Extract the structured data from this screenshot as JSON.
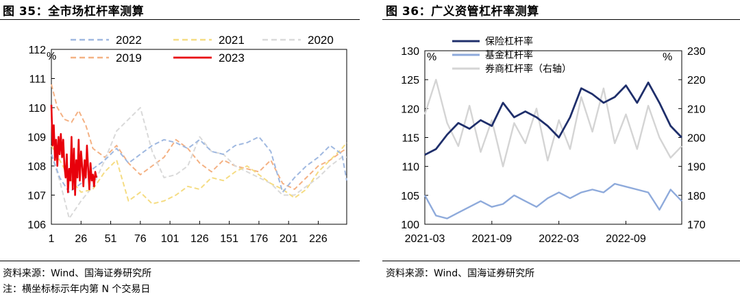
{
  "left": {
    "title": "图 35：全市场杠杆率测算",
    "source": "资料来源：Wind、国海证券研究所",
    "note": "注：横坐标标示年内第 N 个交易日",
    "chart_data": {
      "type": "line",
      "unit": "%",
      "xlim": [
        1,
        250
      ],
      "ylim": [
        106,
        112
      ],
      "x_ticks": [
        "1",
        "26",
        "51",
        "76",
        "101",
        "126",
        "151",
        "176",
        "201",
        "226"
      ],
      "y_ticks": [
        "106",
        "107",
        "108",
        "109",
        "110",
        "111",
        "112"
      ],
      "legend_position": "top",
      "series": [
        {
          "name": "2022",
          "color": "#9fb8e0",
          "dash": "dashed",
          "x": [
            1,
            8,
            16,
            26,
            36,
            46,
            56,
            66,
            76,
            86,
            96,
            106,
            116,
            126,
            136,
            146,
            156,
            166,
            176,
            186,
            196,
            206,
            216,
            226,
            236,
            246,
            250
          ],
          "y": [
            108.4,
            107.6,
            107.1,
            107.4,
            107.9,
            108.2,
            108.6,
            108.1,
            108.4,
            108.7,
            108.9,
            108.8,
            108.6,
            108.9,
            108.5,
            108.4,
            108.7,
            108.8,
            109.0,
            108.5,
            107.1,
            107.6,
            108.0,
            108.3,
            108.7,
            108.4,
            107.5
          ]
        },
        {
          "name": "2021",
          "color": "#f5dc82",
          "dash": "dashed",
          "x": [
            1,
            8,
            16,
            26,
            36,
            46,
            56,
            66,
            76,
            86,
            96,
            106,
            116,
            126,
            136,
            146,
            156,
            166,
            176,
            186,
            196,
            206,
            216,
            226,
            236,
            246,
            250
          ],
          "y": [
            108.7,
            108.2,
            107.6,
            107.1,
            107.2,
            107.8,
            108.2,
            106.8,
            107.1,
            106.7,
            106.8,
            107.0,
            107.3,
            107.2,
            107.6,
            107.5,
            107.8,
            108.0,
            107.7,
            107.4,
            107.2,
            106.9,
            107.2,
            107.8,
            108.2,
            108.6,
            108.8
          ]
        },
        {
          "name": "2020",
          "color": "#d9d9d9",
          "dash": "dashed",
          "x": [
            1,
            8,
            16,
            26,
            36,
            46,
            56,
            66,
            76,
            86,
            96,
            106,
            116,
            126,
            136,
            146,
            156,
            166,
            176,
            186,
            196,
            206,
            216,
            226,
            236,
            246,
            250
          ],
          "y": [
            108.4,
            107.5,
            106.2,
            106.8,
            107.3,
            108.2,
            109.2,
            109.6,
            110.0,
            108.5,
            107.6,
            107.7,
            108.0,
            109.0,
            108.5,
            108.4,
            108.0,
            107.8,
            107.6,
            107.4,
            107.0,
            107.0,
            107.3,
            107.6,
            108.0,
            108.3,
            108.3
          ]
        },
        {
          "name": "2019",
          "color": "#f4b183",
          "dash": "dashed",
          "x": [
            1,
            6,
            12,
            18,
            24,
            30,
            36,
            46,
            56,
            66,
            76,
            86,
            96,
            106,
            116,
            126,
            136,
            146,
            156,
            166,
            176,
            186,
            196,
            206,
            216,
            226,
            236,
            246,
            250
          ],
          "y": [
            110.8,
            110.0,
            109.6,
            109.5,
            109.9,
            109.4,
            108.6,
            108.3,
            108.7,
            108.1,
            107.7,
            108.0,
            108.3,
            108.9,
            108.6,
            108.1,
            107.8,
            108.2,
            108.0,
            107.9,
            107.8,
            108.2,
            107.4,
            107.2,
            107.6,
            108.0,
            108.2,
            108.5,
            108.6
          ]
        },
        {
          "name": "2023",
          "color": "#e8000b",
          "dash": "solid",
          "x": [
            1,
            2,
            3,
            4,
            5,
            6,
            7,
            8,
            9,
            10,
            11,
            12,
            13,
            14,
            15,
            16,
            17,
            18,
            19,
            20,
            21,
            22,
            23,
            24,
            25,
            26,
            27,
            28,
            29,
            30,
            31,
            32,
            33,
            34,
            35,
            36,
            37,
            38,
            39
          ],
          "y": [
            110.1,
            108.7,
            109.4,
            108.2,
            108.9,
            108.0,
            109.0,
            108.4,
            109.1,
            108.3,
            108.9,
            108.0,
            107.6,
            108.4,
            107.1,
            107.9,
            107.5,
            109.0,
            107.2,
            108.6,
            107.0,
            108.2,
            107.6,
            108.9,
            107.5,
            108.5,
            108.0,
            107.3,
            108.2,
            107.6,
            108.7,
            107.9,
            107.2,
            108.1,
            107.5,
            107.7,
            107.3,
            107.8,
            107.6
          ]
        }
      ]
    }
  },
  "right": {
    "title": "图 36：广义资管杠杆率测算",
    "source": "资料来源：Wind、国海证券研究所",
    "chart_data": {
      "type": "line",
      "unit_left": "%",
      "unit_right": "%",
      "ylim_left": [
        100,
        130
      ],
      "ylim_right": [
        170,
        230
      ],
      "x_range": [
        "2021-03",
        "2023-02"
      ],
      "x_ticks": [
        "2021-03",
        "2021-09",
        "2022-03",
        "2022-09"
      ],
      "y_ticks_left": [
        "100",
        "105",
        "110",
        "115",
        "120",
        "125",
        "130"
      ],
      "y_ticks_right": [
        "170",
        "180",
        "190",
        "200",
        "210",
        "220",
        "230"
      ],
      "legend_position": "top-left",
      "series": [
        {
          "name": "保险杠杆率",
          "axis": "left",
          "color": "#1f2f6b",
          "x": [
            "2021-03",
            "2021-04",
            "2021-05",
            "2021-06",
            "2021-07",
            "2021-08",
            "2021-09",
            "2021-10",
            "2021-11",
            "2021-12",
            "2022-01",
            "2022-02",
            "2022-03",
            "2022-04",
            "2022-05",
            "2022-06",
            "2022-07",
            "2022-08",
            "2022-09",
            "2022-10",
            "2022-11",
            "2022-12",
            "2023-01",
            "2023-02"
          ],
          "y": [
            112.0,
            113.0,
            115.5,
            117.5,
            116.5,
            118.0,
            117.0,
            121.0,
            118.5,
            119.5,
            118.5,
            117.0,
            115.0,
            118.5,
            123.5,
            122.5,
            121.0,
            122.0,
            124.0,
            121.0,
            124.5,
            121.0,
            117.0,
            115.0
          ]
        },
        {
          "name": "基金杠杆率",
          "axis": "left",
          "color": "#8eaadb",
          "x": [
            "2021-03",
            "2021-04",
            "2021-05",
            "2021-06",
            "2021-07",
            "2021-08",
            "2021-09",
            "2021-10",
            "2021-11",
            "2021-12",
            "2022-01",
            "2022-02",
            "2022-03",
            "2022-04",
            "2022-05",
            "2022-06",
            "2022-07",
            "2022-08",
            "2022-09",
            "2022-10",
            "2022-11",
            "2022-12",
            "2023-01",
            "2023-02"
          ],
          "y": [
            105.0,
            101.5,
            101.0,
            102.0,
            103.0,
            104.0,
            103.0,
            103.5,
            105.0,
            104.0,
            103.0,
            104.5,
            105.5,
            104.5,
            105.5,
            106.0,
            105.5,
            107.0,
            106.5,
            106.0,
            105.5,
            102.5,
            106.0,
            104.0
          ]
        },
        {
          "name": "券商杠杆率（右轴）",
          "axis": "right",
          "color": "#d4d4d4",
          "x": [
            "2021-03",
            "2021-04",
            "2021-05",
            "2021-06",
            "2021-07",
            "2021-08",
            "2021-09",
            "2021-10",
            "2021-11",
            "2021-12",
            "2022-01",
            "2022-02",
            "2022-03",
            "2022-04",
            "2022-05",
            "2022-06",
            "2022-07",
            "2022-08",
            "2022-09",
            "2022-10",
            "2022-11",
            "2022-12",
            "2023-01",
            "2023-02"
          ],
          "y": [
            208.0,
            220.0,
            205.0,
            197.0,
            211.0,
            195.0,
            206.0,
            190.0,
            205.0,
            198.0,
            210.0,
            192.0,
            206.0,
            196.0,
            214.0,
            202.0,
            217.0,
            198.0,
            208.0,
            196.0,
            211.0,
            200.0,
            193.0,
            197.0
          ]
        }
      ]
    }
  }
}
